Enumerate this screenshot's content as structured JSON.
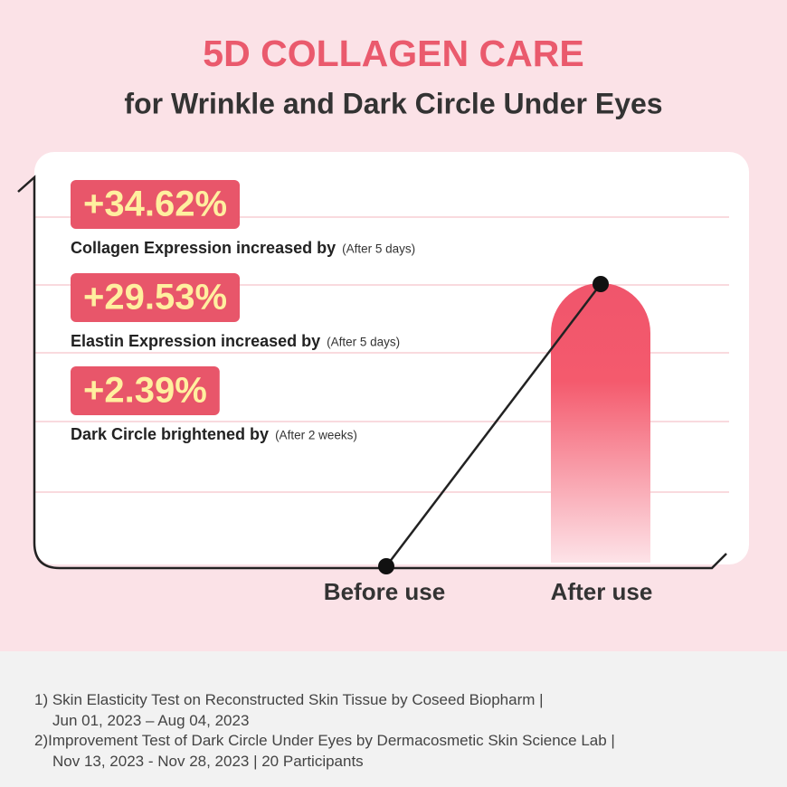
{
  "header": {
    "title": "5D COLLAGEN CARE",
    "subtitle": "for Wrinkle and Dark Circle Under Eyes"
  },
  "stats": [
    {
      "value": "+34.62%",
      "label": "Collagen Expression increased by",
      "note": "(After 5 days)"
    },
    {
      "value": "+29.53%",
      "label": "Elastin Expression increased by",
      "note": "(After 5 days)"
    },
    {
      "value": "+2.39%",
      "label": "Dark Circle brightened by",
      "note": "(After 2 weeks)"
    }
  ],
  "axis": {
    "before": "Before use",
    "after": "After use"
  },
  "footnotes": [
    [
      "1) Skin Elasticity Test on Reconstructed Skin Tissue by Coseed Biopharm |",
      "Jun 01, 2023 – Aug 04, 2023"
    ],
    [
      "2)Improvement Test of Dark Circle Under Eyes by Dermacosmetic Skin Science Lab |",
      "Nov 13, 2023 - Nov 28, 2023 | 20 Participants"
    ]
  ]
}
